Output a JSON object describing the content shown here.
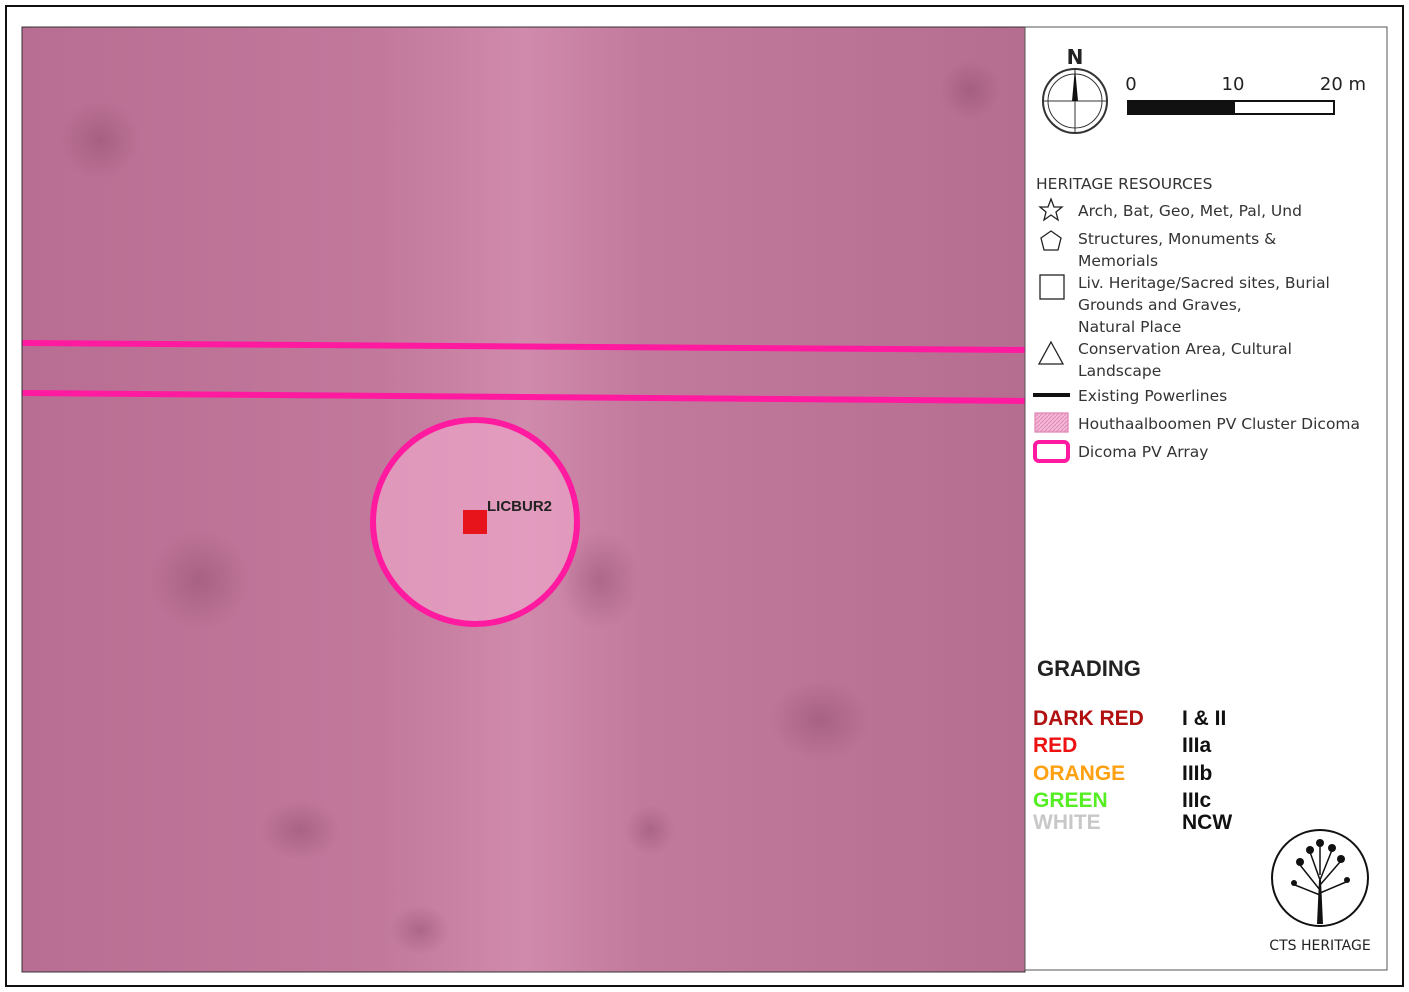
{
  "north": "N",
  "scale": {
    "labels": [
      "0",
      "10",
      "20 m"
    ]
  },
  "site": {
    "label": "LICBUR2"
  },
  "legend": {
    "title": "HERITAGE RESOURCES",
    "items": [
      {
        "lines": [
          "Arch, Bat, Geo, Met, Pal, Und"
        ]
      },
      {
        "lines": [
          "Structures, Monuments &",
          "Memorials"
        ]
      },
      {
        "lines": [
          "Liv. Heritage/Sacred sites, Burial",
          "Grounds and Graves,",
          "Natural Place"
        ]
      },
      {
        "lines": [
          "Conservation Area, Cultural",
          "Landscape"
        ]
      },
      {
        "lines": [
          "Existing Powerlines"
        ]
      },
      {
        "lines": [
          "Houthaalboomen PV Cluster Dicoma"
        ]
      },
      {
        "lines": [
          "Dicoma PV Array"
        ]
      }
    ]
  },
  "grading": {
    "title": "GRADING",
    "rows": [
      {
        "color": "DARK RED",
        "grade": "I & II"
      },
      {
        "color": "RED",
        "grade": "IIIa"
      },
      {
        "color": "ORANGE",
        "grade": "IIIb"
      },
      {
        "color": "GREEN",
        "grade": "IIIc"
      },
      {
        "color": "WHITE",
        "grade": "NCW"
      }
    ]
  },
  "logo": {
    "text": "CTS HERITAGE"
  }
}
